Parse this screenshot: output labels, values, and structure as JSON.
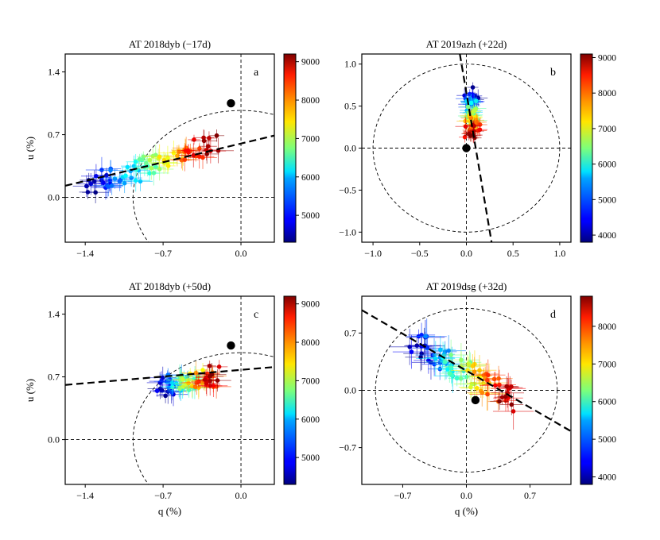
{
  "chart_data": [
    {
      "type": "scatter",
      "panel": "a",
      "title": "AT 2018dyb   (−17d)",
      "xlabel": "",
      "ylabel": "u (%)",
      "xlim": [
        -1.58,
        0.3
      ],
      "ylim": [
        -0.5,
        1.6
      ],
      "xticks": [
        -1.4,
        -0.7,
        0.0
      ],
      "xtick_labels": [
        "−1.4",
        "−0.7",
        "0.0"
      ],
      "yticks": [
        0.0,
        0.7,
        1.4
      ],
      "ytick_labels": [
        "0.0",
        "0.7",
        "1.4"
      ],
      "colorbar": {
        "min": 4300,
        "max": 9200,
        "ticks": [
          5000,
          6000,
          7000,
          8000,
          9000
        ]
      },
      "circle": {
        "cx": 0.0,
        "cy": 0.0,
        "r": 0.97
      },
      "dominant_axis": {
        "x1": -1.58,
        "y1": 0.13,
        "x2": 0.3,
        "y2": 0.69
      },
      "ism_point": {
        "q": -0.09,
        "u": 1.05
      },
      "cluster": {
        "q_range": [
          -1.35,
          -0.25
        ],
        "u_range": [
          0.12,
          0.6
        ],
        "wl_range": [
          4300,
          9200
        ],
        "n": 90,
        "err": 0.09,
        "slope": 0.32
      },
      "label": "a"
    },
    {
      "type": "scatter",
      "panel": "b",
      "title": "AT 2019azh   (+22d)",
      "xlabel": "",
      "ylabel": "",
      "xlim": [
        -1.12,
        1.12
      ],
      "ylim": [
        -1.12,
        1.12
      ],
      "xticks": [
        -1.0,
        -0.5,
        0.0,
        0.5,
        1.0
      ],
      "xtick_labels": [
        "−1.0",
        "−0.5",
        "0.0",
        "0.5",
        "1.0"
      ],
      "yticks": [
        -1.0,
        -0.5,
        0.0,
        0.5,
        1.0
      ],
      "ytick_labels": [
        "−1.0",
        "−0.5",
        "0.0",
        "0.5",
        "1.0"
      ],
      "colorbar": {
        "min": 3800,
        "max": 9100,
        "ticks": [
          4000,
          5000,
          6000,
          7000,
          8000,
          9000
        ]
      },
      "circle": {
        "cx": 0.0,
        "cy": 0.0,
        "r": 1.0
      },
      "dominant_axis": {
        "x1": -0.07,
        "y1": 1.12,
        "x2": 0.27,
        "y2": -1.12
      },
      "ism_point": {
        "q": 0.0,
        "u": 0.0
      },
      "cluster": {
        "q_range": [
          0.02,
          0.1
        ],
        "u_range": [
          0.15,
          0.65
        ],
        "wl_range": [
          3800,
          9100
        ],
        "n": 80,
        "err": 0.07,
        "slope": -4.0
      },
      "label": "b"
    },
    {
      "type": "scatter",
      "panel": "c",
      "title": "AT 2018dyb   (+50d)",
      "xlabel": "q (%)",
      "ylabel": "u (%)",
      "xlim": [
        -1.58,
        0.3
      ],
      "ylim": [
        -0.5,
        1.6
      ],
      "xticks": [
        -1.4,
        -0.7,
        0.0
      ],
      "xtick_labels": [
        "−1.4",
        "−0.7",
        "0.0"
      ],
      "yticks": [
        0.0,
        0.7,
        1.4
      ],
      "ytick_labels": [
        "0.0",
        "0.7",
        "1.4"
      ],
      "colorbar": {
        "min": 4300,
        "max": 9200,
        "ticks": [
          5000,
          6000,
          7000,
          8000,
          9000
        ]
      },
      "circle": {
        "cx": 0.0,
        "cy": 0.0,
        "r": 0.97
      },
      "dominant_axis": {
        "x1": -1.58,
        "y1": 0.61,
        "x2": 0.3,
        "y2": 0.81
      },
      "ism_point": {
        "q": -0.09,
        "u": 1.05
      },
      "cluster": {
        "q_range": [
          -0.72,
          -0.22
        ],
        "u_range": [
          0.58,
          0.72
        ],
        "wl_range": [
          4300,
          9200
        ],
        "n": 80,
        "err": 0.09,
        "slope": 0.1
      },
      "label": "c"
    },
    {
      "type": "scatter",
      "panel": "d",
      "title": "AT 2019dsg   (+32d)",
      "xlabel": "q (%)",
      "ylabel": "",
      "xlim": [
        -1.15,
        1.15
      ],
      "ylim": [
        -1.15,
        1.15
      ],
      "xticks": [
        -0.7,
        0.0,
        0.7
      ],
      "xtick_labels": [
        "−0.7",
        "0.0",
        "0.7"
      ],
      "yticks": [
        -0.7,
        0.0,
        0.7
      ],
      "ytick_labels": [
        "−0.7",
        "0.0",
        "0.7"
      ],
      "colorbar": {
        "min": 3800,
        "max": 8800,
        "ticks": [
          4000,
          5000,
          6000,
          7000,
          8000
        ]
      },
      "circle": {
        "cx": 0.0,
        "cy": 0.0,
        "r": 1.0
      },
      "dominant_axis": {
        "x1": -1.15,
        "y1": 0.98,
        "x2": 1.15,
        "y2": -0.5
      },
      "ism_point": {
        "q": 0.1,
        "u": -0.12
      },
      "cluster": {
        "q_range": [
          -0.6,
          0.5
        ],
        "u_range": [
          -0.25,
          0.55
        ],
        "wl_range": [
          3800,
          8800
        ],
        "n": 90,
        "err": 0.14,
        "slope": -0.65
      },
      "label": "d"
    }
  ]
}
